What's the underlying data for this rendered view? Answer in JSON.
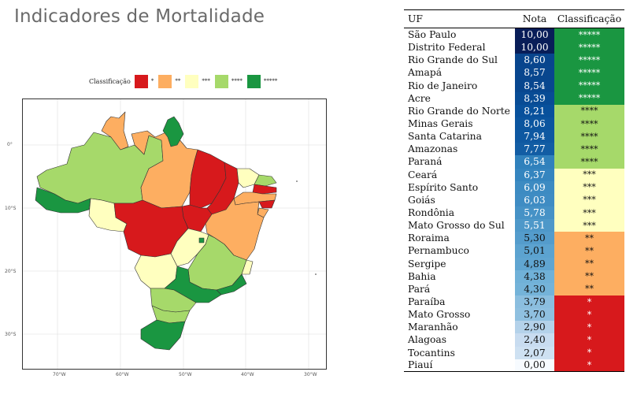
{
  "title": "Indicadores de Mortalidade",
  "colors": {
    "c5": "#1a9641",
    "c4": "#a6d96a",
    "c3": "#ffffbf",
    "c2": "#fdae61",
    "c1": "#d7191c"
  },
  "legend": {
    "title": "Classificação",
    "items": [
      {
        "label": "*",
        "color": "#d7191c"
      },
      {
        "label": "**",
        "color": "#fdae61"
      },
      {
        "label": "***",
        "color": "#ffffbf"
      },
      {
        "label": "****",
        "color": "#a6d96a"
      },
      {
        "label": "*****",
        "color": "#1a9641"
      }
    ]
  },
  "map_axes": {
    "lat_labels": [
      "0°",
      "10°S",
      "20°S",
      "30°S"
    ],
    "lon_labels": [
      "70°W",
      "60°W",
      "50°W",
      "40°W",
      "30°W"
    ]
  },
  "table": {
    "headers": [
      "UF",
      "Nota",
      "Classificação"
    ],
    "rows": [
      {
        "uf": "São Paulo",
        "nota": "10,00",
        "classe": "*****",
        "value": 10.0
      },
      {
        "uf": "Distrito Federal",
        "nota": "10,00",
        "classe": "*****",
        "value": 10.0
      },
      {
        "uf": "Rio Grande do Sul",
        "nota": "8,60",
        "classe": "*****",
        "value": 8.6
      },
      {
        "uf": "Amapá",
        "nota": "8,57",
        "classe": "*****",
        "value": 8.57
      },
      {
        "uf": "Rio de Janeiro",
        "nota": "8,54",
        "classe": "*****",
        "value": 8.54
      },
      {
        "uf": "Acre",
        "nota": "8,39",
        "classe": "*****",
        "value": 8.39
      },
      {
        "uf": "Rio Grande do Norte",
        "nota": "8,21",
        "classe": "****",
        "value": 8.21
      },
      {
        "uf": "Minas Gerais",
        "nota": "8,06",
        "classe": "****",
        "value": 8.06
      },
      {
        "uf": "Santa Catarina",
        "nota": "7,94",
        "classe": "****",
        "value": 7.94
      },
      {
        "uf": "Amazonas",
        "nota": "7,77",
        "classe": "****",
        "value": 7.77
      },
      {
        "uf": "Paraná",
        "nota": "6,54",
        "classe": "****",
        "value": 6.54
      },
      {
        "uf": "Ceará",
        "nota": "6,37",
        "classe": "***",
        "value": 6.37
      },
      {
        "uf": "Espírito Santo",
        "nota": "6,09",
        "classe": "***",
        "value": 6.09
      },
      {
        "uf": "Goiás",
        "nota": "6,03",
        "classe": "***",
        "value": 6.03
      },
      {
        "uf": "Rondônia",
        "nota": "5,78",
        "classe": "***",
        "value": 5.78
      },
      {
        "uf": "Mato Grosso do Sul",
        "nota": "5,51",
        "classe": "***",
        "value": 5.51
      },
      {
        "uf": "Roraima",
        "nota": "5,30",
        "classe": "**",
        "value": 5.3
      },
      {
        "uf": "Pernambuco",
        "nota": "5,01",
        "classe": "**",
        "value": 5.01
      },
      {
        "uf": "Sergipe",
        "nota": "4,89",
        "classe": "**",
        "value": 4.89
      },
      {
        "uf": "Bahia",
        "nota": "4,38",
        "classe": "**",
        "value": 4.38
      },
      {
        "uf": "Pará",
        "nota": "4,30",
        "classe": "**",
        "value": 4.3
      },
      {
        "uf": "Paraíba",
        "nota": "3,79",
        "classe": "*",
        "value": 3.79
      },
      {
        "uf": "Mato Grosso",
        "nota": "3,70",
        "classe": "*",
        "value": 3.7
      },
      {
        "uf": "Maranhão",
        "nota": "2,90",
        "classe": "*",
        "value": 2.9
      },
      {
        "uf": "Alagoas",
        "nota": "2,40",
        "classe": "*",
        "value": 2.4
      },
      {
        "uf": "Tocantins",
        "nota": "2,07",
        "classe": "*",
        "value": 2.07
      },
      {
        "uf": "Piauí",
        "nota": "0,00",
        "classe": "*",
        "value": 0.0
      }
    ]
  }
}
